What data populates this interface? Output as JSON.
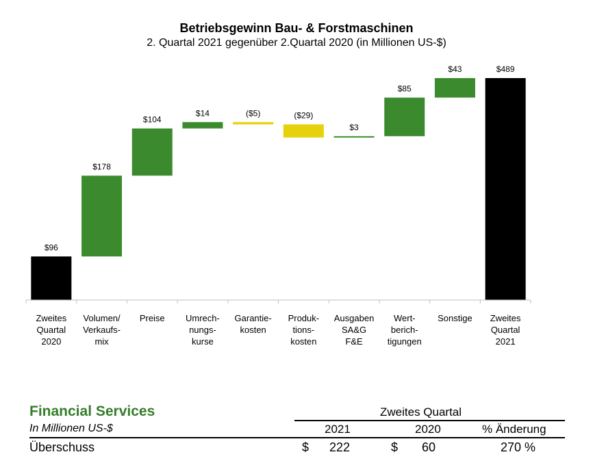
{
  "chart_data": {
    "type": "waterfall",
    "title": "Betriebsgewinn Bau- & Forstmaschinen",
    "subtitle": "2. Quartal 2021 gegenüber 2.Quartal 2020 (in Millionen US-$)",
    "colors": {
      "total": "#000000",
      "increase": "#3c8a2e",
      "decrease": "#e6d20a"
    },
    "ylim": [
      0,
      489
    ],
    "steps": [
      {
        "category": "Zweites\nQuartal\n2020",
        "value": 96,
        "label": "$96",
        "kind": "total"
      },
      {
        "category": "Volumen/\nVerkaufs-\nmix",
        "value": 178,
        "label": "$178",
        "kind": "increase"
      },
      {
        "category": "Preise",
        "value": 104,
        "label": "$104",
        "kind": "increase"
      },
      {
        "category": "Umrech-\nnungs-\nkurse",
        "value": 14,
        "label": "$14",
        "kind": "increase"
      },
      {
        "category": "Garantie-\nkosten",
        "value": -5,
        "label": "($5)",
        "kind": "decrease"
      },
      {
        "category": "Produk-\ntions-\nkosten",
        "value": -29,
        "label": "($29)",
        "kind": "decrease"
      },
      {
        "category": "Ausgaben\nSA&G\nF&E",
        "value": 3,
        "label": "$3",
        "kind": "increase"
      },
      {
        "category": "Wert-\nberich-\ntigungen",
        "value": 85,
        "label": "$85",
        "kind": "increase"
      },
      {
        "category": "Sonstige",
        "value": 43,
        "label": "$43",
        "kind": "increase"
      },
      {
        "category": "Zweites\nQuartal\n2021",
        "value": 489,
        "label": "$489",
        "kind": "total"
      }
    ]
  },
  "financial_services": {
    "title": "Financial Services",
    "subtitle": "In Millionen US-$",
    "period": "Zweites Quartal",
    "col_2021": "2021",
    "col_2020": "2020",
    "col_change": "% Änderung",
    "row_label": "Überschuss",
    "currency_a": "$",
    "value_2021": "222",
    "currency_b": "$",
    "value_2020": "60",
    "change": "270 %"
  }
}
